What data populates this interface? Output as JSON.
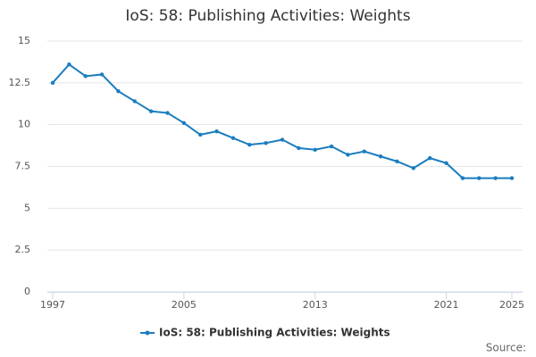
{
  "chart_data": {
    "type": "line",
    "title": "IoS: 58: Publishing Activities: Weights",
    "source": "Source:",
    "x": [
      1997,
      1998,
      1999,
      2000,
      2001,
      2002,
      2003,
      2004,
      2005,
      2006,
      2007,
      2008,
      2009,
      2010,
      2011,
      2012,
      2013,
      2014,
      2015,
      2016,
      2017,
      2018,
      2019,
      2020,
      2021,
      2022,
      2023,
      2024,
      2025
    ],
    "series": [
      {
        "name": "IoS: 58: Publishing Activities: Weights",
        "color": "#1a7dbf",
        "values": [
          12.5,
          13.6,
          12.9,
          13.0,
          12.0,
          11.4,
          10.8,
          10.7,
          10.1,
          9.4,
          9.6,
          9.2,
          8.8,
          8.9,
          9.1,
          8.6,
          8.5,
          8.7,
          8.2,
          8.4,
          8.1,
          7.8,
          7.4,
          8.0,
          7.7,
          6.8,
          6.8,
          6.8,
          6.8
        ]
      }
    ],
    "xlim": [
      1997,
      2025
    ],
    "xticks": [
      1997,
      2005,
      2013,
      2021,
      2025
    ],
    "ylim": [
      0,
      15
    ],
    "yticks": [
      0,
      2.5,
      5,
      7.5,
      10,
      12.5,
      15
    ],
    "grid": true
  }
}
